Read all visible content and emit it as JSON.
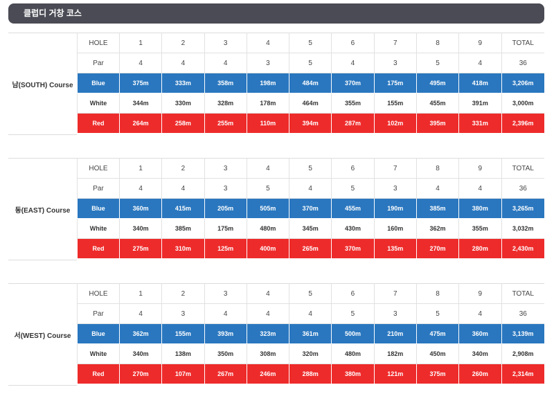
{
  "title": "클럽디 거창 코스",
  "header_labels": [
    "HOLE",
    "1",
    "2",
    "3",
    "4",
    "5",
    "6",
    "7",
    "8",
    "9",
    "TOTAL"
  ],
  "courses": [
    {
      "name": "남(SOUTH) Course",
      "par": [
        "Par",
        "4",
        "4",
        "4",
        "3",
        "5",
        "4",
        "3",
        "5",
        "4",
        "36"
      ],
      "blue": [
        "Blue",
        "375m",
        "333m",
        "358m",
        "198m",
        "484m",
        "370m",
        "175m",
        "495m",
        "418m",
        "3,206m"
      ],
      "white": [
        "White",
        "344m",
        "330m",
        "328m",
        "178m",
        "464m",
        "355m",
        "155m",
        "455m",
        "391m",
        "3,000m"
      ],
      "red": [
        "Red",
        "264m",
        "258m",
        "255m",
        "110m",
        "394m",
        "287m",
        "102m",
        "395m",
        "331m",
        "2,396m"
      ]
    },
    {
      "name": "동(EAST) Course",
      "par": [
        "Par",
        "4",
        "4",
        "3",
        "5",
        "4",
        "5",
        "3",
        "4",
        "4",
        "36"
      ],
      "blue": [
        "Blue",
        "360m",
        "415m",
        "205m",
        "505m",
        "370m",
        "455m",
        "190m",
        "385m",
        "380m",
        "3,265m"
      ],
      "white": [
        "White",
        "340m",
        "385m",
        "175m",
        "480m",
        "345m",
        "430m",
        "160m",
        "362m",
        "355m",
        "3,032m"
      ],
      "red": [
        "Red",
        "275m",
        "310m",
        "125m",
        "400m",
        "265m",
        "370m",
        "135m",
        "270m",
        "280m",
        "2,430m"
      ]
    },
    {
      "name": "서(WEST) Course",
      "par": [
        "Par",
        "4",
        "3",
        "4",
        "4",
        "4",
        "5",
        "3",
        "5",
        "4",
        "36"
      ],
      "blue": [
        "Blue",
        "362m",
        "155m",
        "393m",
        "323m",
        "361m",
        "500m",
        "210m",
        "475m",
        "360m",
        "3,139m"
      ],
      "white": [
        "White",
        "340m",
        "138m",
        "350m",
        "308m",
        "320m",
        "480m",
        "182m",
        "450m",
        "340m",
        "2,908m"
      ],
      "red": [
        "Red",
        "270m",
        "107m",
        "267m",
        "246m",
        "288m",
        "380m",
        "121m",
        "375m",
        "260m",
        "2,314m"
      ]
    }
  ],
  "colors": {
    "header_bar": "#4a4b54",
    "blue": "#2a77bf",
    "red": "#ee2b2b"
  }
}
